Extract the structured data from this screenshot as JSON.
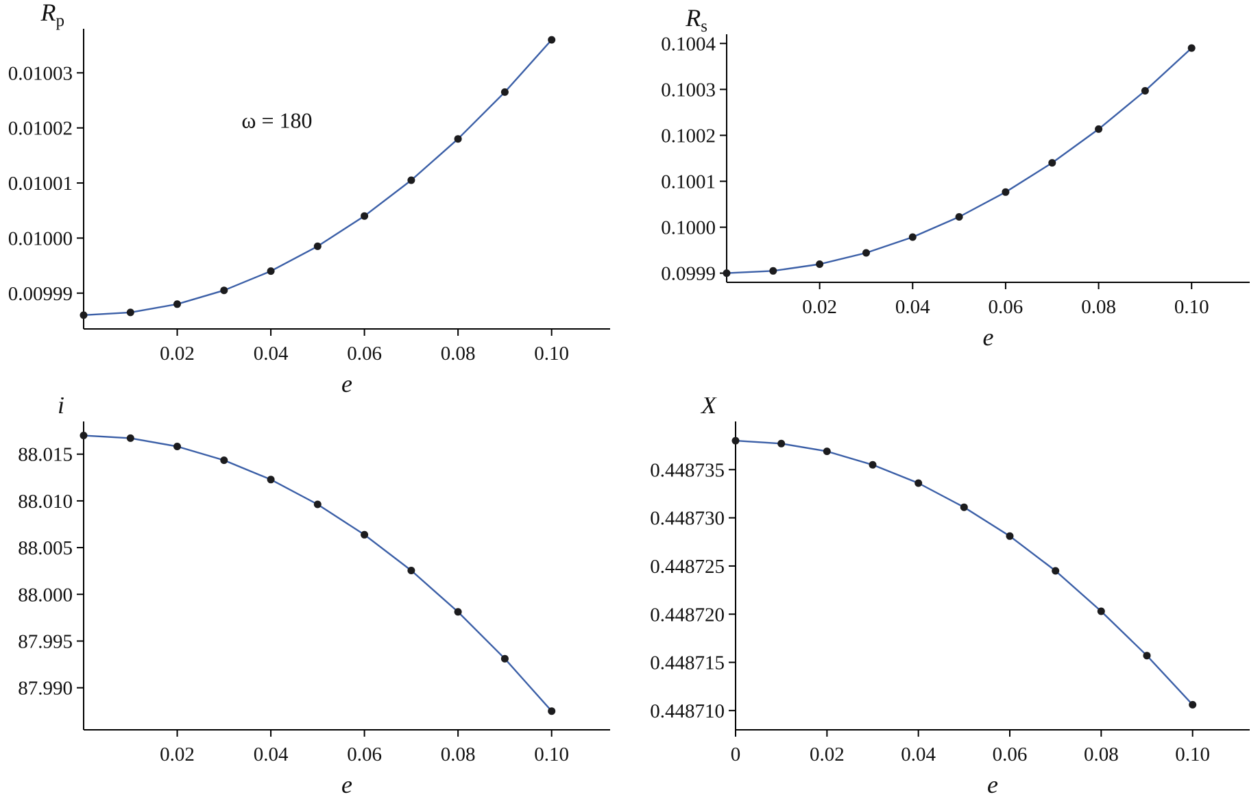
{
  "figure": {
    "background": "#ffffff",
    "axis_color": "#000000",
    "text_color": "#111111"
  },
  "chart_data": [
    {
      "type": "line",
      "id": "rp",
      "ylabel": {
        "base": "R",
        "sub": "p"
      },
      "xlabel": "e",
      "annotation": {
        "text": "ω = 180",
        "fx": 0.3,
        "fy": 0.33
      },
      "x": [
        0,
        0.01,
        0.02,
        0.03,
        0.04,
        0.05,
        0.06,
        0.07,
        0.08,
        0.09,
        0.1
      ],
      "y": [
        0.009986,
        0.0099865,
        0.009988,
        0.0099905,
        0.009994,
        0.0099985,
        0.010004,
        0.0100105,
        0.010018,
        0.0100265,
        0.010036
      ],
      "xlim": [
        0,
        0.1125
      ],
      "ylim": [
        0.0099835,
        0.010038
      ],
      "xticks": [
        0.02,
        0.04,
        0.06,
        0.08,
        0.1
      ],
      "xtick_labels": [
        "0.02",
        "0.04",
        "0.06",
        "0.08",
        "0.10"
      ],
      "yticks": [
        0.00999,
        0.01,
        0.01001,
        0.01002,
        0.01003
      ],
      "ytick_labels": [
        "0.00999",
        "0.01000",
        "0.01001",
        "0.01002",
        "0.01003"
      ],
      "grid": false,
      "legend": null,
      "line_color": "#3b5fa7",
      "marker_color": "#1c1c1e",
      "marker_radius": 5.5
    },
    {
      "type": "line",
      "id": "rs",
      "ylabel": {
        "base": "R",
        "sub": "s"
      },
      "xlabel": "e",
      "annotation": null,
      "x": [
        0,
        0.01,
        0.02,
        0.03,
        0.04,
        0.05,
        0.06,
        0.07,
        0.08,
        0.09,
        0.1
      ],
      "y": [
        0.0999,
        0.0999049,
        0.0999196,
        0.0999441,
        0.0999784,
        0.1000225,
        0.1000764,
        0.1001401,
        0.1002136,
        0.1002969,
        0.10039
      ],
      "xlim": [
        0,
        0.1125
      ],
      "ylim": [
        0.09988,
        0.10042
      ],
      "xticks": [
        0.02,
        0.04,
        0.06,
        0.08,
        0.1
      ],
      "xtick_labels": [
        "0.02",
        "0.04",
        "0.06",
        "0.08",
        "0.10"
      ],
      "yticks": [
        0.0999,
        0.1,
        0.1001,
        0.1002,
        0.1003,
        0.1004
      ],
      "ytick_labels": [
        "0.0999",
        "0.1000",
        "0.1001",
        "0.1002",
        "0.1003",
        "0.1004"
      ],
      "grid": false,
      "legend": null,
      "line_color": "#3b5fa7",
      "marker_color": "#1c1c1e",
      "marker_radius": 5.5
    },
    {
      "type": "line",
      "id": "i",
      "ylabel": {
        "base": "i"
      },
      "xlabel": "e",
      "annotation": null,
      "x": [
        0,
        0.01,
        0.02,
        0.03,
        0.04,
        0.05,
        0.06,
        0.07,
        0.08,
        0.09,
        0.1
      ],
      "y": [
        88.017,
        88.01671,
        88.01582,
        88.01435,
        88.01228,
        88.00963,
        88.00638,
        88.00255,
        87.99812,
        87.99311,
        87.9875
      ],
      "xlim": [
        0,
        0.1125
      ],
      "ylim": [
        87.9855,
        88.0185
      ],
      "xticks": [
        0.02,
        0.04,
        0.06,
        0.08,
        0.1
      ],
      "xtick_labels": [
        "0.02",
        "0.04",
        "0.06",
        "0.08",
        "0.10"
      ],
      "yticks": [
        87.99,
        87.995,
        88.0,
        88.005,
        88.01,
        88.015
      ],
      "ytick_labels": [
        "87.990",
        "87.995",
        "88.000",
        "88.005",
        "88.010",
        "88.015"
      ],
      "grid": false,
      "legend": null,
      "line_color": "#3b5fa7",
      "marker_color": "#1c1c1e",
      "marker_radius": 5.5
    },
    {
      "type": "line",
      "id": "x",
      "ylabel": {
        "base": "X"
      },
      "xlabel": "e",
      "annotation": null,
      "x": [
        0,
        0.01,
        0.02,
        0.03,
        0.04,
        0.05,
        0.06,
        0.07,
        0.08,
        0.09,
        0.1
      ],
      "y": [
        0.448738,
        0.4487377,
        0.4487369,
        0.4487355,
        0.4487336,
        0.4487311,
        0.4487281,
        0.4487245,
        0.4487203,
        0.4487157,
        0.4487106
      ],
      "xlim": [
        0,
        0.1125
      ],
      "ylim": [
        0.448708,
        0.44874
      ],
      "xticks": [
        0,
        0.02,
        0.04,
        0.06,
        0.08,
        0.1
      ],
      "xtick_labels": [
        "0",
        "0.02",
        "0.04",
        "0.06",
        "0.08",
        "0.10"
      ],
      "yticks": [
        0.44871,
        0.448715,
        0.44872,
        0.448725,
        0.44873,
        0.448735
      ],
      "ytick_labels": [
        "0.448710",
        "0.448715",
        "0.448720",
        "0.448725",
        "0.448730",
        "0.448735"
      ],
      "grid": false,
      "legend": null,
      "line_color": "#3b5fa7",
      "marker_color": "#1c1c1e",
      "marker_radius": 5.5
    }
  ]
}
